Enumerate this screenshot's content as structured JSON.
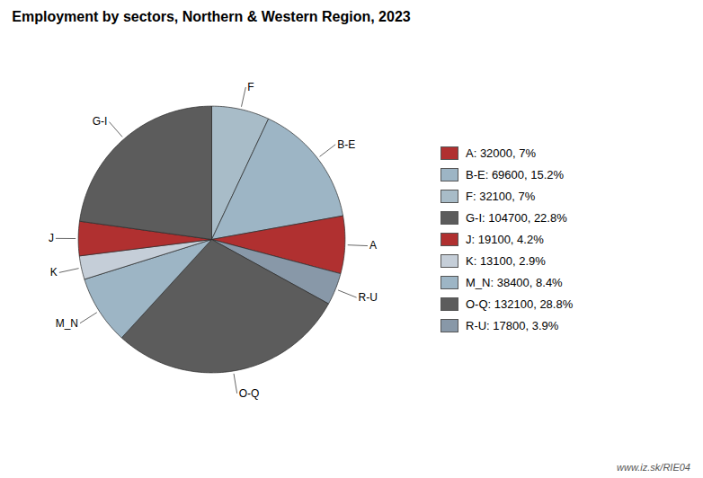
{
  "chart_data": {
    "type": "pie",
    "title": "Employment by sectors, Northern & Western Region, 2023",
    "categories": [
      "F",
      "B-E",
      "A",
      "R-U",
      "O-Q",
      "M_N",
      "K",
      "J",
      "G-I"
    ],
    "values": [
      32100,
      69600,
      32000,
      17800,
      132100,
      38400,
      13100,
      19100,
      104700
    ],
    "colors": [
      "#a8bcc8",
      "#9db5c5",
      "#b03030",
      "#8898a8",
      "#5c5c5c",
      "#9db5c5",
      "#c5ced8",
      "#b03030",
      "#5c5c5c"
    ],
    "legend": "right",
    "legend_entries": [
      {
        "label": "A: 32000, 7%",
        "color": "#b03030"
      },
      {
        "label": "B-E: 69600, 15.2%",
        "color": "#9db5c5"
      },
      {
        "label": "F: 32100, 7%",
        "color": "#a8bcc8"
      },
      {
        "label": "G-I: 104700, 22.8%",
        "color": "#5c5c5c"
      },
      {
        "label": "J: 19100, 4.2%",
        "color": "#b03030"
      },
      {
        "label": "K: 13100, 2.9%",
        "color": "#c5ced8"
      },
      {
        "label": "M_N: 38400, 8.4%",
        "color": "#9db5c5"
      },
      {
        "label": "O-Q: 132100, 28.8%",
        "color": "#5c5c5c"
      },
      {
        "label": "R-U: 17800, 3.9%",
        "color": "#8898a8"
      }
    ],
    "annotations": [
      "www.iz.sk/RIE04"
    ]
  }
}
